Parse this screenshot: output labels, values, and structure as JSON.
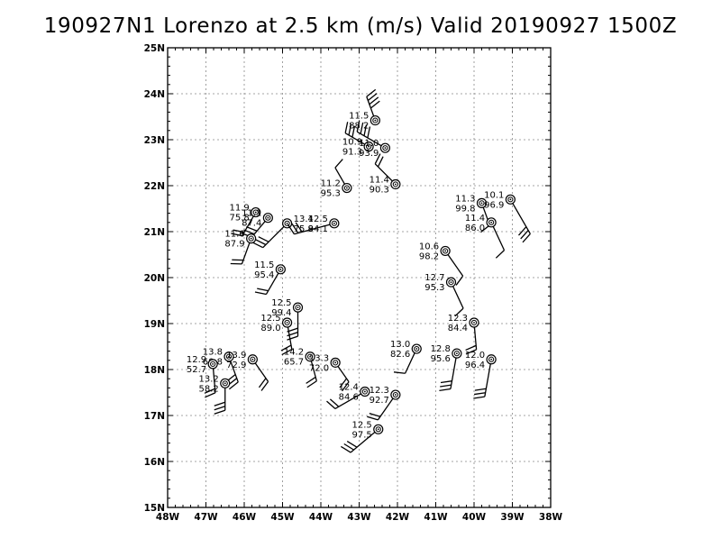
{
  "chart_data": {
    "type": "scatter",
    "title": "190927N1 Lorenzo at 2.5 km (m/s) Valid 20190927 1500Z",
    "xlim": [
      -48,
      -38
    ],
    "ylim": [
      15,
      25
    ],
    "grid": true,
    "x_ticks": [
      {
        "value": -48,
        "label": "48W"
      },
      {
        "value": -47,
        "label": "47W"
      },
      {
        "value": -46,
        "label": "46W"
      },
      {
        "value": -45,
        "label": "45W"
      },
      {
        "value": -44,
        "label": "44W"
      },
      {
        "value": -43,
        "label": "43W"
      },
      {
        "value": -42,
        "label": "42W"
      },
      {
        "value": -41,
        "label": "41W"
      },
      {
        "value": -40,
        "label": "40W"
      },
      {
        "value": -39,
        "label": "39W"
      },
      {
        "value": -38,
        "label": "38W"
      }
    ],
    "y_ticks": [
      {
        "value": 15,
        "label": "15N"
      },
      {
        "value": 16,
        "label": "16N"
      },
      {
        "value": 17,
        "label": "17N"
      },
      {
        "value": 18,
        "label": "18N"
      },
      {
        "value": 19,
        "label": "19N"
      },
      {
        "value": 20,
        "label": "20N"
      },
      {
        "value": 21,
        "label": "21N"
      },
      {
        "value": 22,
        "label": "22N"
      },
      {
        "value": 23,
        "label": "23N"
      },
      {
        "value": 24,
        "label": "24N"
      },
      {
        "value": 25,
        "label": "25N"
      }
    ],
    "observations": [
      {
        "lon": -42.58,
        "lat": 23.42,
        "speed": "11.5",
        "direction": "88.2",
        "barb_dir": 340,
        "barb_len": 28,
        "barbs": 4,
        "label_side": "left"
      },
      {
        "lon": -42.75,
        "lat": 22.85,
        "speed": "10.9",
        "direction": "91.3",
        "barb_dir": 300,
        "barb_len": 30,
        "barbs": 3,
        "label_side": "left"
      },
      {
        "lon": -42.32,
        "lat": 22.82,
        "speed": "11.0",
        "direction": "93.9",
        "barb_dir": 300,
        "barb_len": 36,
        "barbs": 4,
        "label_side": "left"
      },
      {
        "lon": -42.05,
        "lat": 22.03,
        "speed": "11.4",
        "direction": "90.3",
        "barb_dir": 315,
        "barb_len": 32,
        "barbs": 2,
        "label_side": "left"
      },
      {
        "lon": -43.32,
        "lat": 21.95,
        "speed": "11.2",
        "direction": "95.3",
        "barb_dir": 330,
        "barb_len": 26,
        "barbs": 1,
        "label_side": "left"
      },
      {
        "lon": -45.7,
        "lat": 21.42,
        "speed": "11.9",
        "direction": "75.8",
        "barb_dir": 210,
        "barb_len": 30,
        "barbs": 2,
        "label_side": "left"
      },
      {
        "lon": -45.38,
        "lat": 21.3,
        "speed": "11.1",
        "direction": "87.4",
        "barb_dir": 220,
        "barb_len": 28,
        "barbs": 3,
        "label_side": "left"
      },
      {
        "lon": -44.88,
        "lat": 21.18,
        "speed": "13.4",
        "direction": "75.8",
        "barb_dir": 225,
        "barb_len": 38,
        "barbs": 3,
        "label_side": "right"
      },
      {
        "lon": -43.65,
        "lat": 21.18,
        "speed": "12.5",
        "direction": "94.1",
        "barb_dir": 255,
        "barb_len": 46,
        "barbs": 3,
        "label_side": "left"
      },
      {
        "lon": -45.82,
        "lat": 20.85,
        "speed": "11.6",
        "direction": "87.9",
        "barb_dir": 200,
        "barb_len": 30,
        "barbs": 2,
        "label_side": "left"
      },
      {
        "lon": -45.05,
        "lat": 20.18,
        "speed": "11.5",
        "direction": "95.4",
        "barb_dir": 210,
        "barb_len": 32,
        "barbs": 2,
        "label_side": "left"
      },
      {
        "lon": -44.6,
        "lat": 19.35,
        "speed": "12.5",
        "direction": "99.4",
        "barb_dir": 180,
        "barb_len": 32,
        "barbs": 3,
        "label_side": "left"
      },
      {
        "lon": -44.88,
        "lat": 19.02,
        "speed": "12.5",
        "direction": "89.0",
        "barb_dir": 170,
        "barb_len": 30,
        "barbs": 2,
        "label_side": "left"
      },
      {
        "lon": -44.28,
        "lat": 18.28,
        "speed": "14.2",
        "direction": "65.7",
        "barb_dir": 165,
        "barb_len": 28,
        "barbs": 2,
        "label_side": "left"
      },
      {
        "lon": -43.62,
        "lat": 18.15,
        "speed": "13.3",
        "direction": "72.0",
        "barb_dir": 145,
        "barb_len": 26,
        "barbs": 2,
        "label_side": "left"
      },
      {
        "lon": -46.4,
        "lat": 18.28,
        "speed": "13.8",
        "direction": "60.8",
        "barb_dir": 160,
        "barb_len": 30,
        "barbs": 3,
        "label_side": "left"
      },
      {
        "lon": -46.82,
        "lat": 18.12,
        "speed": "12.9",
        "direction": "52.7",
        "barb_dir": 175,
        "barb_len": 32,
        "barbs": 2,
        "label_side": "left"
      },
      {
        "lon": -45.78,
        "lat": 18.22,
        "speed": "13.9",
        "direction": "72.9",
        "barb_dir": 145,
        "barb_len": 30,
        "barbs": 2,
        "label_side": "left"
      },
      {
        "lon": -46.5,
        "lat": 17.7,
        "speed": "13.2",
        "direction": "58.2",
        "barb_dir": 180,
        "barb_len": 30,
        "barbs": 3,
        "label_side": "left"
      },
      {
        "lon": -41.5,
        "lat": 18.45,
        "speed": "13.0",
        "direction": "82.6",
        "barb_dir": 205,
        "barb_len": 30,
        "barbs": 1,
        "label_side": "left"
      },
      {
        "lon": -40.6,
        "lat": 19.9,
        "speed": "12.7",
        "direction": "95.3",
        "barb_dir": 155,
        "barb_len": 32,
        "barbs": 1,
        "label_side": "left"
      },
      {
        "lon": -40.0,
        "lat": 19.02,
        "speed": "12.3",
        "direction": "84.4",
        "barb_dir": 175,
        "barb_len": 30,
        "barbs": 2,
        "label_side": "left"
      },
      {
        "lon": -40.45,
        "lat": 18.35,
        "speed": "12.8",
        "direction": "95.6",
        "barb_dir": 190,
        "barb_len": 40,
        "barbs": 3,
        "label_side": "left"
      },
      {
        "lon": -39.55,
        "lat": 18.22,
        "speed": "12.0",
        "direction": "96.4",
        "barb_dir": 190,
        "barb_len": 42,
        "barbs": 3,
        "label_side": "left"
      },
      {
        "lon": -40.75,
        "lat": 20.58,
        "speed": "10.6",
        "direction": "98.2",
        "barb_dir": 145,
        "barb_len": 34,
        "barbs": 1,
        "label_side": "left"
      },
      {
        "lon": -39.8,
        "lat": 21.62,
        "speed": "11.3",
        "direction": "99.8",
        "barb_dir": 160,
        "barb_len": 26,
        "barbs": 1,
        "label_side": "left"
      },
      {
        "lon": -39.05,
        "lat": 21.7,
        "speed": "10.1",
        "direction": "96.9",
        "barb_dir": 150,
        "barb_len": 44,
        "barbs": 3,
        "label_side": "left"
      },
      {
        "lon": -39.55,
        "lat": 21.2,
        "speed": "11.4",
        "direction": "86.0",
        "barb_dir": 155,
        "barb_len": 34,
        "barbs": 1,
        "label_side": "left"
      },
      {
        "lon": -42.85,
        "lat": 17.52,
        "speed": "12.4",
        "direction": "84.6",
        "barb_dir": 240,
        "barb_len": 38,
        "barbs": 2,
        "label_side": "left"
      },
      {
        "lon": -42.05,
        "lat": 17.45,
        "speed": "12.3",
        "direction": "92.7",
        "barb_dir": 215,
        "barb_len": 34,
        "barbs": 2,
        "label_side": "left"
      },
      {
        "lon": -42.5,
        "lat": 16.7,
        "speed": "12.5",
        "direction": "97.5",
        "barb_dir": 230,
        "barb_len": 40,
        "barbs": 3,
        "label_side": "left"
      }
    ]
  }
}
